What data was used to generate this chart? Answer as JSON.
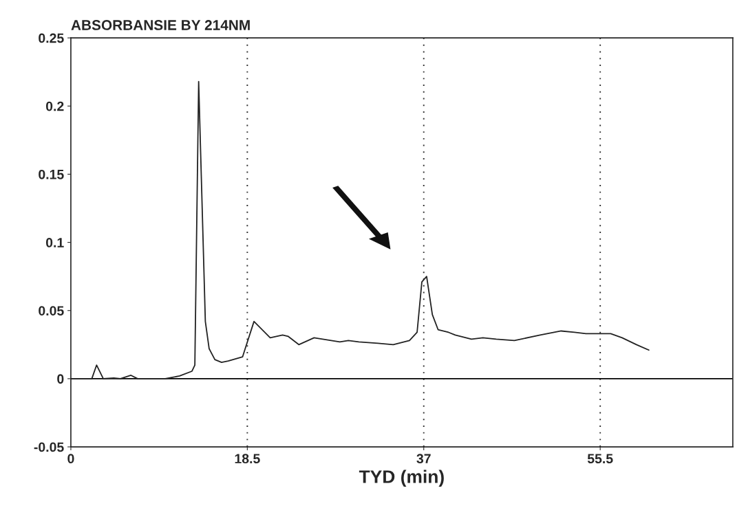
{
  "chart_data": {
    "type": "line",
    "title": "ABSORBANSIE BY 214NM",
    "xlabel": "TYD (min)",
    "xlim": [
      0,
      69.4
    ],
    "xticks": [
      0,
      18.5,
      37,
      55.5
    ],
    "ylim": [
      -0.05,
      0.25
    ],
    "yticks": [
      {
        "value": -0.05,
        "label": "-0.05"
      },
      0,
      0.05,
      0.1,
      0.15,
      0.2,
      0.25
    ],
    "grid": "x",
    "line_style": "solid",
    "marker": "none",
    "ref_lines": [
      {
        "axis": "y",
        "value": 0,
        "color": "#000000",
        "line_style": "solid"
      }
    ],
    "series": [
      {
        "color": "#222222",
        "x": [
          0,
          2.2,
          2.7,
          3.4,
          4.5,
          5.2,
          6.3,
          7,
          9.9,
          11.4,
          12.7,
          13.0,
          13.4,
          14.1,
          14.5,
          15.1,
          15.8,
          16.5,
          18.0,
          19.2,
          20.9,
          22.2,
          22.8,
          23.9,
          25.5,
          27.3,
          28.2,
          29.1,
          30.2,
          32.2,
          33.8,
          35.5,
          36.3,
          36.8,
          37.3,
          37.9,
          38.5,
          39.6,
          40.3,
          42.0,
          43.2,
          44.6,
          46.5,
          49.2,
          51.4,
          52.8,
          54.0,
          56.6,
          57.8,
          59.3,
          60.6
        ],
        "values": [
          0,
          0,
          0.01,
          0,
          0.0005,
          0,
          0.0025,
          0,
          0,
          0.002,
          0.0055,
          0.01,
          0.218,
          0.042,
          0.022,
          0.014,
          0.012,
          0.013,
          0.016,
          0.042,
          0.03,
          0.032,
          0.031,
          0.025,
          0.03,
          0.028,
          0.027,
          0.028,
          0.027,
          0.026,
          0.025,
          0.028,
          0.034,
          0.071,
          0.075,
          0.047,
          0.036,
          0.034,
          0.032,
          0.029,
          0.03,
          0.029,
          0.028,
          0.032,
          0.035,
          0.034,
          0.033,
          0.033,
          0.03,
          0.025,
          0.021
        ]
      }
    ]
  }
}
